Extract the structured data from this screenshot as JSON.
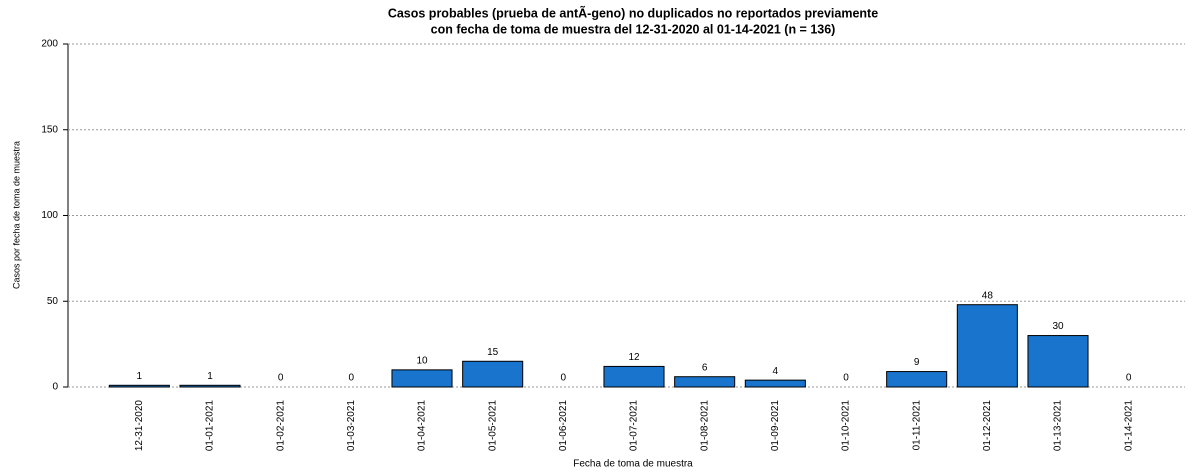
{
  "chart_data": {
    "type": "bar",
    "title": [
      "Casos probables (prueba de antÃ-geno) no duplicados no reportados previamente",
      "con fecha de toma de muestra del 12-31-2020 al 01-14-2021 (n = 136)"
    ],
    "x_label": "Fecha de toma de muestra",
    "y_label": "Casos por fecha de toma de muestra",
    "categories": [
      "12-31-2020",
      "01-01-2021",
      "01-02-2021",
      "01-03-2021",
      "01-04-2021",
      "01-05-2021",
      "01-06-2021",
      "01-07-2021",
      "01-08-2021",
      "01-09-2021",
      "01-10-2021",
      "01-11-2021",
      "01-12-2021",
      "01-13-2021",
      "01-14-2021"
    ],
    "values": [
      1,
      1,
      0,
      0,
      10,
      15,
      0,
      12,
      6,
      4,
      0,
      9,
      48,
      30,
      0
    ],
    "color": "#1874cd",
    "ylim": [
      0,
      200
    ],
    "yticks": [
      0,
      50,
      100,
      150,
      200
    ],
    "grid": true
  }
}
